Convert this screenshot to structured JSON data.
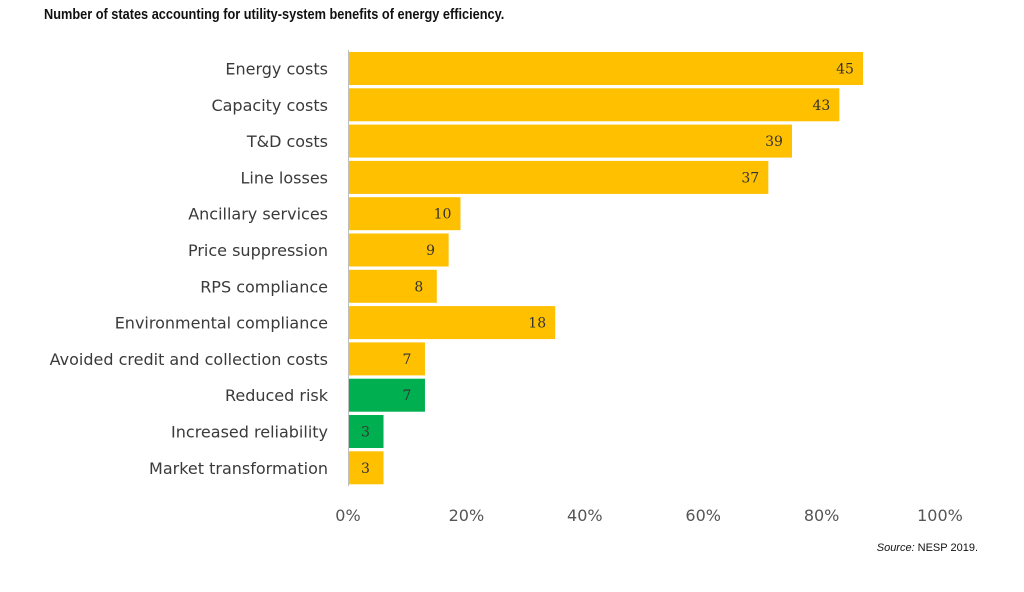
{
  "title": "Number of states accounting for utility-system benefits of energy efficiency.",
  "source": {
    "label": "Source:",
    "text": "NESP 2019."
  },
  "colors": {
    "default_bar": "#FFC000",
    "highlight_bar": "#00B050",
    "axis": "#bfbfbf"
  },
  "chart_data": {
    "type": "bar",
    "orientation": "horizontal",
    "categories": [
      "Energy costs",
      "Capacity costs",
      "T&D costs",
      "Line losses",
      "Ancillary services",
      "Price suppression",
      "RPS compliance",
      "Environmental compliance",
      "Avoided credit and collection costs",
      "Reduced risk",
      "Increased reliability",
      "Market transformation"
    ],
    "values": [
      45,
      43,
      39,
      37,
      10,
      9,
      8,
      18,
      7,
      7,
      3,
      3
    ],
    "highlighted": [
      false,
      false,
      false,
      false,
      false,
      false,
      false,
      false,
      false,
      true,
      true,
      false
    ],
    "x_ticks": [
      "0%",
      "20%",
      "40%",
      "60%",
      "80%",
      "100%"
    ],
    "x_tick_values": [
      0,
      20,
      40,
      60,
      80,
      100
    ],
    "xlim": [
      0,
      100
    ],
    "bar_percent": [
      87,
      83,
      75,
      71,
      19,
      17,
      15,
      35,
      13,
      13,
      6,
      6
    ],
    "title": "Number of states accounting for utility-system benefits of energy efficiency.",
    "xlabel": "",
    "ylabel": "",
    "grid": false,
    "legend": "none"
  }
}
